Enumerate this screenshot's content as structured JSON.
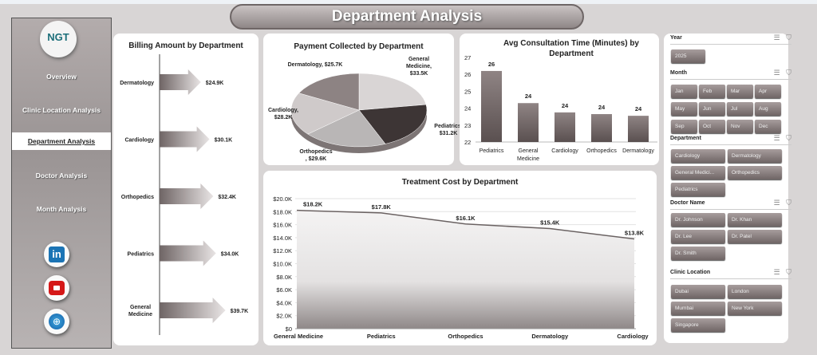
{
  "header": {
    "title": "Department Analysis"
  },
  "sidebar": {
    "logo": "NGT",
    "items": [
      {
        "label": "Overview"
      },
      {
        "label": "Clinic Location Analysis"
      },
      {
        "label": "Department Analysis",
        "active": true
      },
      {
        "label": "Doctor Analysis"
      },
      {
        "label": "Month Analysis"
      }
    ],
    "social": [
      "linkedin-icon",
      "youtube-icon",
      "globe-icon"
    ]
  },
  "slicers": {
    "year": {
      "label": "Year",
      "items": [
        "2025"
      ]
    },
    "month": {
      "label": "Month",
      "items": [
        "Jan",
        "Feb",
        "Mar",
        "Apr",
        "May",
        "Jun",
        "Jul",
        "Aug",
        "Sep",
        "Oct",
        "Nov",
        "Dec"
      ]
    },
    "department": {
      "label": "Department",
      "items": [
        "Cardiology",
        "Dermatology",
        "General Medici...",
        "Orthopedics",
        "Pediatrics"
      ]
    },
    "doctor": {
      "label": "Doctor Name",
      "items": [
        "Dr. Johnson",
        "Dr. Khan",
        "Dr. Lee",
        "Dr. Patel",
        "Dr. Smith"
      ]
    },
    "location": {
      "label": "Clinic Location",
      "items": [
        "Dubai",
        "London",
        "Mumbai",
        "New York",
        "Singapore"
      ]
    }
  },
  "chart_data": [
    {
      "type": "bar",
      "orientation": "horizontal",
      "title": "Billing Amount by Department",
      "categories": [
        "Dermatology",
        "Cardiology",
        "Orthopedics",
        "Pediatrics",
        "General Medicine"
      ],
      "values": [
        24.9,
        30.1,
        32.4,
        34.0,
        39.7
      ],
      "labels": [
        "$24.9K",
        "$30.1K",
        "$32.4K",
        "$34.0K",
        "$39.7K"
      ],
      "unit": "$K",
      "grid": false
    },
    {
      "type": "pie",
      "title": "Payment Collected by Department",
      "categories": [
        "General Medicine",
        "Pediatrics",
        "Orthopedics",
        "Cardiology",
        "Dermatology"
      ],
      "values": [
        33.5,
        31.2,
        29.6,
        28.2,
        25.7
      ],
      "labels": [
        "General Medicine, $33.5K",
        "Pediatrics, $31.2K",
        "Orthopedics , $29.6K",
        "Cardiology, $28.2K",
        "Dermatology, $25.7K"
      ],
      "colors": [
        "#d9d5d5",
        "#3d3535",
        "#b9b6b6",
        "#cfcaca",
        "#8d8383"
      ]
    },
    {
      "type": "bar",
      "title": "Avg Consultation Time (Minutes) by Department",
      "categories": [
        "Pediatrics",
        "General Medicine",
        "Cardiology",
        "Orthopedics",
        "Dermatology"
      ],
      "values": [
        26.2,
        24.3,
        23.75,
        23.65,
        23.55
      ],
      "labels": [
        "26",
        "24",
        "24",
        "24",
        "24"
      ],
      "ylim": [
        22,
        27
      ],
      "yticks": [
        "22",
        "23",
        "24",
        "25",
        "26",
        "27"
      ],
      "grid": false
    },
    {
      "type": "area",
      "title": "Treatment Cost by Department",
      "categories": [
        "General Medicine",
        "Pediatrics",
        "Orthopedics",
        "Dermatology",
        "Cardiology"
      ],
      "values": [
        18.2,
        17.8,
        16.1,
        15.4,
        13.8
      ],
      "labels": [
        "$18.2K",
        "$17.8K",
        "$16.1K",
        "$15.4K",
        "$13.8K"
      ],
      "ylim": [
        0,
        20
      ],
      "yticks": [
        "$0",
        "$2.0K",
        "$4.0K",
        "$6.0K",
        "$8.0K",
        "$10.0K",
        "$12.0K",
        "$14.0K",
        "$16.0K",
        "$18.0K",
        "$20.0K"
      ],
      "grid": true
    }
  ]
}
